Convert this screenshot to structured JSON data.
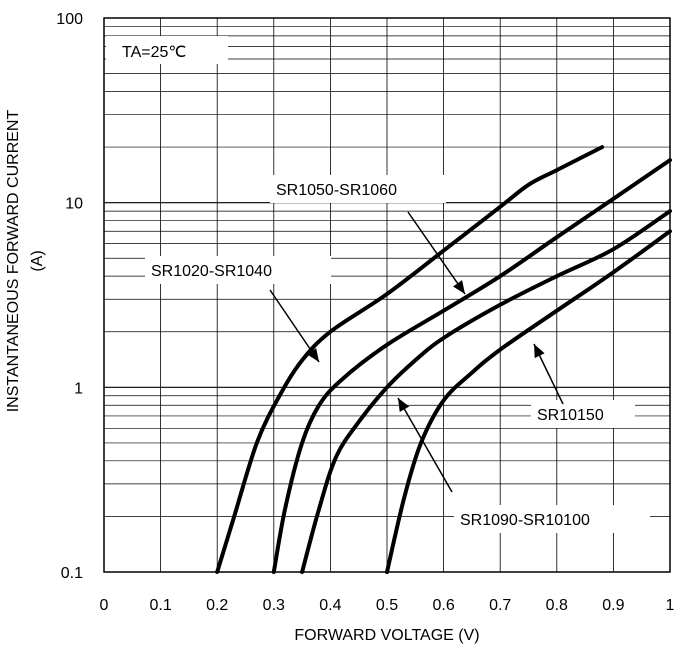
{
  "chart_data": {
    "type": "line",
    "xscale": "linear",
    "yscale": "log",
    "xlim": [
      0,
      1
    ],
    "ylim": [
      0.1,
      100
    ],
    "x_ticks": [
      "0",
      "0.1",
      "0.2",
      "0.3",
      "0.4",
      "0.5",
      "0.6",
      "0.7",
      "0.8",
      "0.9",
      "1"
    ],
    "y_ticks": [
      "0.1",
      "1",
      "10",
      "100"
    ],
    "xlabel": "FORWARD VOLTAGE (V)",
    "ylabel": "INSTANTANEOUS FORWARD CURRENT",
    "ylabel_unit": "(A)",
    "condition": "TA=25℃",
    "grid": true,
    "series": [
      {
        "name": "SR1020-SR1040",
        "x": [
          0.2,
          0.23,
          0.27,
          0.31,
          0.35,
          0.4,
          0.5,
          0.6,
          0.7,
          0.75,
          0.8,
          0.88
        ],
        "y": [
          0.1,
          0.2,
          0.5,
          0.9,
          1.4,
          2.0,
          3.2,
          5.5,
          9.5,
          12.5,
          15,
          20
        ]
      },
      {
        "name": "SR1050-SR1060",
        "x": [
          0.3,
          0.32,
          0.35,
          0.38,
          0.42,
          0.5,
          0.6,
          0.7,
          0.8,
          0.9,
          1.0
        ],
        "y": [
          0.1,
          0.22,
          0.5,
          0.8,
          1.1,
          1.7,
          2.6,
          4.0,
          6.5,
          10.5,
          17
        ]
      },
      {
        "name": "SR1090-SR10100",
        "x": [
          0.35,
          0.38,
          0.41,
          0.45,
          0.5,
          0.55,
          0.6,
          0.7,
          0.8,
          0.9,
          1.0
        ],
        "y": [
          0.1,
          0.22,
          0.42,
          0.65,
          1.0,
          1.4,
          1.85,
          2.8,
          4.0,
          5.6,
          9.0
        ]
      },
      {
        "name": "SR10150",
        "x": [
          0.5,
          0.53,
          0.56,
          0.6,
          0.65,
          0.7,
          0.8,
          0.9,
          1.0
        ],
        "y": [
          0.1,
          0.25,
          0.5,
          0.85,
          1.2,
          1.6,
          2.6,
          4.2,
          7.0
        ]
      }
    ],
    "annotations": [
      {
        "text": "SR1020-SR1040"
      },
      {
        "text": "SR1050-SR1060"
      },
      {
        "text": "SR1090-SR10100"
      },
      {
        "text": "SR10150"
      }
    ]
  }
}
